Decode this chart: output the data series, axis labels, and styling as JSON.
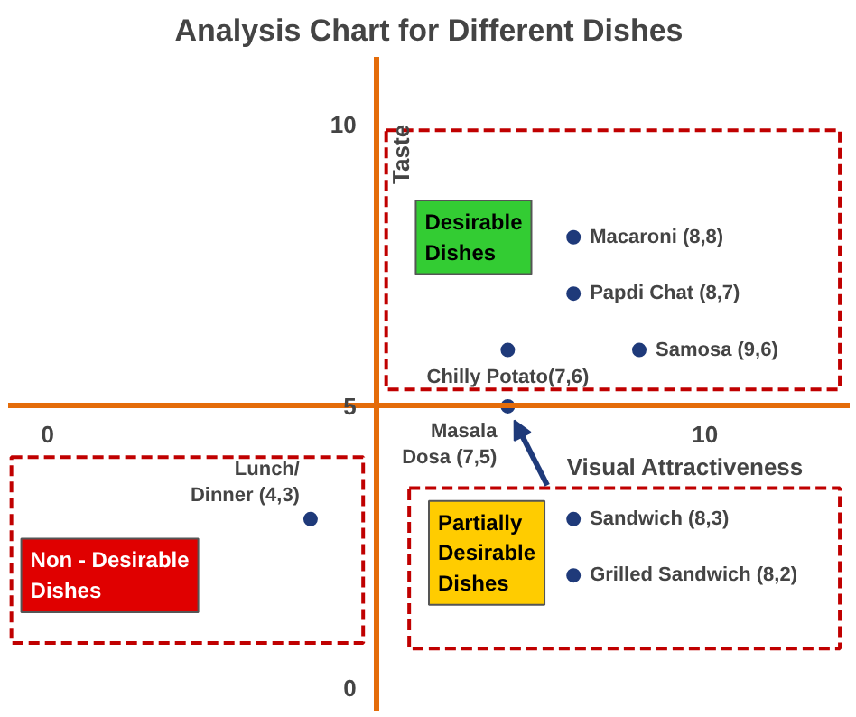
{
  "chart_data": {
    "type": "scatter",
    "title": "Analysis Chart for Different Dishes",
    "xlabel": "Visual Attractiveness",
    "ylabel": "Taste",
    "x": [
      8,
      8,
      9,
      7,
      7,
      4,
      8,
      8
    ],
    "series": [
      {
        "color": "#1f3a7a",
        "values": [
          8,
          7,
          6,
          6,
          5,
          3,
          3,
          2
        ]
      }
    ],
    "xlim": [
      -0.6,
      12.2
    ],
    "ylim": [
      -0.4,
      11.2
    ],
    "xticks": [
      0,
      10
    ],
    "yticks": [
      0,
      5,
      10
    ],
    "grid": false,
    "marker": "circle",
    "annotations": [
      {
        "text": "Macaroni (8,8)",
        "x": 8,
        "y": 8
      },
      {
        "text": "Papdi Chat (8,7)",
        "x": 8,
        "y": 7
      },
      {
        "text": "Samosa (9,6)",
        "x": 9,
        "y": 6
      },
      {
        "text": "Chilly Potato(7,6)",
        "x": 7,
        "y": 6
      },
      {
        "text": "Masala\nDosa (7,5)",
        "x": 7,
        "y": 5
      },
      {
        "text": "Lunch/\nDinner (4,3)",
        "x": 4,
        "y": 3
      },
      {
        "text": "Sandwich (8,3)",
        "x": 8,
        "y": 3
      },
      {
        "text": "Grilled Sandwich (8,2)",
        "x": 8,
        "y": 2
      },
      "Desirable\nDishes",
      "Non - Desirable\nDishes",
      "Partially\nDesirable\nDishes"
    ]
  }
}
